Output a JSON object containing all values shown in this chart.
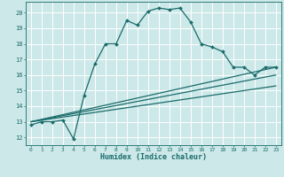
{
  "xlabel": "Humidex (Indice chaleur)",
  "xlim": [
    -0.5,
    23.5
  ],
  "ylim": [
    11.5,
    20.7
  ],
  "yticks": [
    12,
    13,
    14,
    15,
    16,
    17,
    18,
    19,
    20
  ],
  "xticks": [
    0,
    1,
    2,
    3,
    4,
    5,
    6,
    7,
    8,
    9,
    10,
    11,
    12,
    13,
    14,
    15,
    16,
    17,
    18,
    19,
    20,
    21,
    22,
    23
  ],
  "bg_color": "#cce8e8",
  "line_color": "#1a6b6b",
  "grid_color": "#ffffff",
  "main_line": {
    "x": [
      0,
      1,
      2,
      3,
      4,
      5,
      6,
      7,
      8,
      9,
      10,
      11,
      12,
      13,
      14,
      15,
      16,
      17,
      18,
      19,
      20,
      21,
      22,
      23
    ],
    "y": [
      12.8,
      13.0,
      13.0,
      13.1,
      11.9,
      14.7,
      16.7,
      18.0,
      18.0,
      19.5,
      19.2,
      20.1,
      20.3,
      20.2,
      20.3,
      19.4,
      18.0,
      17.8,
      17.5,
      16.5,
      16.5,
      16.0,
      16.5,
      16.5
    ]
  },
  "diag_lines": [
    {
      "x0": 0,
      "y0": 13.0,
      "x1": 23,
      "y1": 16.5
    },
    {
      "x0": 0,
      "y0": 13.0,
      "x1": 23,
      "y1": 16.0
    },
    {
      "x0": 0,
      "y0": 13.0,
      "x1": 23,
      "y1": 15.3
    }
  ]
}
